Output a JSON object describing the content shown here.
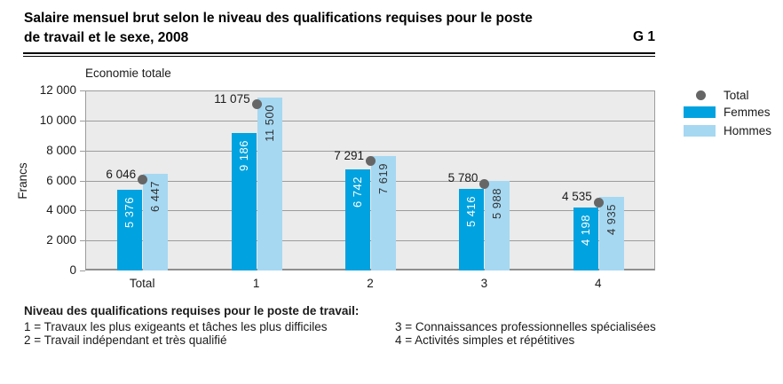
{
  "header": {
    "title_line1": "Salaire mensuel brut selon le niveau des qualifications requises pour le poste",
    "title_line2": "de travail et le sexe, 2008",
    "figure_label": "G 1"
  },
  "chart_data": {
    "type": "bar",
    "subtitle": "Economie totale",
    "ylabel": "Francs",
    "ylim": [
      0,
      12000
    ],
    "ytick_interval": 2000,
    "yticks": [
      "12 000",
      "10 000",
      "8 000",
      "6 000",
      "4 000",
      "2 000",
      "0"
    ],
    "categories": [
      "Total",
      "1",
      "2",
      "3",
      "4"
    ],
    "series": [
      {
        "name": "Femmes",
        "color": "#00a2df",
        "label_color": "#ffffff",
        "values": [
          5376,
          9186,
          6742,
          5416,
          4198
        ],
        "labels": [
          "5 376",
          "9 186",
          "6 742",
          "5 416",
          "4 198"
        ]
      },
      {
        "name": "Hommes",
        "color": "#a6d8f2",
        "label_color": "#333333",
        "values": [
          6447,
          11500,
          7619,
          5988,
          4935
        ],
        "labels": [
          "6 447",
          "11 500",
          "7 619",
          "5 988",
          "4 935"
        ]
      }
    ],
    "total_series": {
      "name": "Total",
      "color": "#666666",
      "values": [
        6046,
        11075,
        7291,
        5780,
        4535
      ],
      "labels": [
        "6 046",
        "11 075",
        "7 291",
        "5 780",
        "4 535"
      ]
    },
    "legend": [
      "Total",
      "Femmes",
      "Hommes"
    ],
    "legend_position": "right",
    "grid": true,
    "plot_background": "#ebebeb",
    "grid_color": "#9c9c9c"
  },
  "footer": {
    "heading": "Niveau des qualifications requises pour le poste de travail:",
    "col1": [
      "1 = Travaux les plus exigeants et tâches les plus difficiles",
      "2 = Travail indépendant et très qualifié"
    ],
    "col2": [
      "3 = Connaissances professionnelles spécialisées",
      "4 = Activités simples et répétitives"
    ]
  }
}
